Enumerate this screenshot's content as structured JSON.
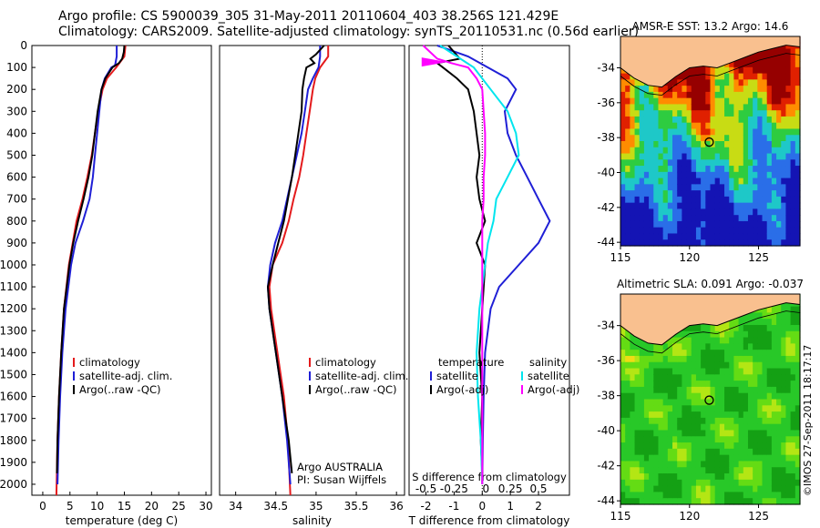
{
  "header": {
    "line1": "Argo profile: CS 5900039_305 31-May-2011 20110604_403 38.256S 121.429E",
    "line2": "Climatology: CARS2009. Satellite-adjusted climatology: synTS_20110531.nc (0.56d earlier)"
  },
  "stamp": "©IMOS 27-Sep-2011 18:17:17",
  "colors": {
    "climatology": "#e41a1c",
    "satellite": "#1f1fd6",
    "argo": "#000000",
    "salinity_satellite": "#00e5ee",
    "salinity_argo": "#ff00ff",
    "land": "#f9c08f"
  },
  "chart_data": [
    {
      "type": "line",
      "panel": "temperature",
      "xlabel": "temperature (deg C)",
      "ylabel": "",
      "xlim": [
        -2,
        31
      ],
      "ylim": [
        2050,
        0
      ],
      "xticks": [
        0,
        5,
        10,
        15,
        20,
        25,
        30
      ],
      "yticks": [
        0,
        100,
        200,
        300,
        400,
        500,
        600,
        700,
        800,
        900,
        1000,
        1100,
        1200,
        1300,
        1400,
        1500,
        1600,
        1700,
        1800,
        1900,
        2000
      ],
      "legend": [
        "climatology",
        "satellite-adj. clim.",
        "Argo(..raw -QC)"
      ],
      "legend_position": "lower-center",
      "series": [
        {
          "name": "climatology",
          "y": [
            0,
            50,
            100,
            150,
            200,
            300,
            400,
            500,
            600,
            700,
            800,
            900,
            1000,
            1200,
            1400,
            1600,
            1800,
            2050
          ],
          "x": [
            15.2,
            15.0,
            13.5,
            11.8,
            11.0,
            10.2,
            9.6,
            9.0,
            8.2,
            7.3,
            6.2,
            5.5,
            4.8,
            3.9,
            3.4,
            3.0,
            2.7,
            2.5
          ]
        },
        {
          "name": "satellite-adj. clim.",
          "y": [
            0,
            10,
            50,
            90,
            100,
            150,
            200,
            300,
            400,
            500,
            600,
            700,
            800,
            900,
            1000,
            1200,
            1400,
            1600,
            1800,
            2000
          ],
          "x": [
            13.6,
            13.6,
            13.6,
            13.3,
            12.6,
            11.4,
            10.8,
            10.4,
            10.0,
            9.6,
            9.2,
            8.6,
            7.4,
            6.0,
            5.2,
            4.2,
            3.6,
            3.2,
            2.9,
            2.7
          ]
        },
        {
          "name": "Argo(..raw -QC)",
          "y": [
            0,
            30,
            60,
            80,
            100,
            150,
            200,
            300,
            400,
            500,
            600,
            700,
            800,
            900,
            1000,
            1200,
            1400,
            1600,
            1800,
            1950
          ],
          "x": [
            15.0,
            14.9,
            14.6,
            14.0,
            12.8,
            11.5,
            10.8,
            10.1,
            9.6,
            9.1,
            8.4,
            7.5,
            6.5,
            5.6,
            4.9,
            3.9,
            3.4,
            3.0,
            2.7,
            2.6
          ]
        }
      ]
    },
    {
      "type": "line",
      "panel": "salinity",
      "xlabel": "salinity",
      "xlim": [
        33.8,
        36.1
      ],
      "ylim": [
        2050,
        0
      ],
      "xticks": [
        34,
        34.5,
        35,
        35.5,
        36
      ],
      "yticks": [],
      "legend": [
        "climatology",
        "satellite-adj. clim.",
        "Argo(..raw -QC)"
      ],
      "legend_position": "lower-center",
      "annotations": [
        "Argo AUSTRALIA",
        "PI: Susan Wijffels"
      ],
      "series": [
        {
          "name": "climatology",
          "y": [
            0,
            50,
            100,
            150,
            200,
            300,
            400,
            500,
            600,
            700,
            800,
            900,
            1000,
            1100,
            1200,
            1400,
            1600,
            1800,
            2050
          ],
          "x": [
            35.15,
            35.15,
            35.05,
            34.99,
            34.96,
            34.92,
            34.88,
            34.84,
            34.79,
            34.72,
            34.66,
            34.58,
            34.46,
            34.42,
            34.44,
            34.52,
            34.6,
            34.65,
            34.68
          ]
        },
        {
          "name": "satellite-adj. clim.",
          "y": [
            0,
            50,
            100,
            150,
            200,
            300,
            400,
            500,
            600,
            700,
            800,
            900,
            1000,
            1100,
            1200,
            1400,
            1600,
            1800,
            2000
          ],
          "x": [
            35.05,
            35.05,
            35.03,
            34.96,
            34.9,
            34.86,
            34.82,
            34.76,
            34.7,
            34.64,
            34.58,
            34.49,
            34.43,
            34.4,
            34.42,
            34.5,
            34.58,
            34.64,
            34.68
          ]
        },
        {
          "name": "Argo(..raw -QC)",
          "y": [
            0,
            40,
            60,
            80,
            100,
            150,
            200,
            300,
            400,
            500,
            600,
            700,
            800,
            900,
            1000,
            1100,
            1200,
            1400,
            1600,
            1800,
            1950
          ],
          "x": [
            35.1,
            35.0,
            34.93,
            34.98,
            34.88,
            34.85,
            34.83,
            34.82,
            34.78,
            34.74,
            34.7,
            34.65,
            34.6,
            34.53,
            34.46,
            34.4,
            34.42,
            34.5,
            34.58,
            34.66,
            34.7
          ]
        }
      ]
    },
    {
      "type": "line",
      "panel": "difference",
      "xlabel": "T difference from climatology",
      "xlabel_top": "S difference from climatology",
      "xlim": [
        -2.6,
        3.1
      ],
      "ylim": [
        2050,
        0
      ],
      "xticks": [
        -2,
        -1,
        0,
        1,
        2
      ],
      "s_ticks": [
        "-0.5",
        "-0.25",
        "0",
        "0.25",
        "0.5"
      ],
      "yticks": [],
      "legend_groups": [
        "temperature",
        "salinity"
      ],
      "legend": [
        "satellite",
        "Argo(-adj)",
        "satellite",
        "Argo(-adj)"
      ],
      "legend_position": "lower-center",
      "series": [
        {
          "name": "satellite",
          "group": "temperature",
          "y": [
            0,
            50,
            100,
            150,
            200,
            300,
            400,
            500,
            600,
            700,
            800,
            900,
            1000,
            1100,
            1200,
            1400,
            1600,
            1800,
            2000
          ],
          "x": [
            -1.6,
            -0.5,
            0.2,
            0.9,
            1.2,
            0.8,
            0.9,
            1.2,
            1.6,
            2.0,
            2.4,
            2.0,
            1.3,
            0.6,
            0.3,
            0.1,
            0.05,
            0.02,
            0
          ]
        },
        {
          "name": "Argo(-adj)",
          "group": "temperature",
          "y": [
            0,
            60,
            80,
            100,
            150,
            200,
            300,
            400,
            500,
            600,
            700,
            800,
            900,
            1000,
            1200,
            1400,
            1600,
            1800,
            1950
          ],
          "x": [
            -1.2,
            -0.8,
            -1.6,
            -1.4,
            -0.9,
            -0.5,
            -0.3,
            -0.2,
            -0.1,
            -0.2,
            -0.1,
            0.1,
            -0.2,
            0.1,
            0.0,
            -0.1,
            0.0,
            -0.05,
            0
          ]
        },
        {
          "name": "satellite",
          "group": "salinity",
          "y": [
            0,
            50,
            100,
            200,
            300,
            400,
            500,
            600,
            700,
            800,
            900,
            1000,
            1100,
            1200,
            1400,
            1600,
            1800,
            2000
          ],
          "x": [
            -1.5,
            -0.9,
            -0.3,
            0.3,
            0.9,
            1.2,
            1.3,
            0.9,
            0.5,
            0.4,
            0.2,
            0.1,
            0.0,
            -0.1,
            -0.2,
            -0.15,
            -0.05,
            0
          ]
        },
        {
          "name": "Argo(-adj)",
          "group": "salinity",
          "y": [
            0,
            60,
            80,
            100,
            150,
            200,
            300,
            400,
            500,
            600,
            700,
            800,
            1000,
            1200,
            1600,
            2000
          ],
          "x": [
            -2.1,
            -1.6,
            -1.1,
            -0.5,
            -0.2,
            0.0,
            0.05,
            0.1,
            0.1,
            0.05,
            0.05,
            0.0,
            0.0,
            0.0,
            0.0,
            0
          ]
        }
      ]
    },
    {
      "type": "heatmap",
      "panel": "sst-map",
      "title": "AMSR-E SST: 13.2 Argo: 14.6",
      "xlim": [
        115,
        128
      ],
      "ylim": [
        -44.2,
        -32.2
      ],
      "xticks": [
        115,
        120,
        125
      ],
      "yticks": [
        -34,
        -36,
        -38,
        -40,
        -42,
        -44
      ],
      "argo_position": {
        "lon": 121.429,
        "lat": -38.256
      }
    },
    {
      "type": "heatmap",
      "panel": "sla-map",
      "title": "Altimetric SLA: 0.091 Argo: -0.037",
      "xlim": [
        115,
        128
      ],
      "ylim": [
        -44.2,
        -32.2
      ],
      "xticks": [
        115,
        120,
        125
      ],
      "yticks": [
        -34,
        -36,
        -38,
        -40,
        -42,
        -44
      ],
      "argo_position": {
        "lon": 121.429,
        "lat": -38.256
      }
    }
  ]
}
